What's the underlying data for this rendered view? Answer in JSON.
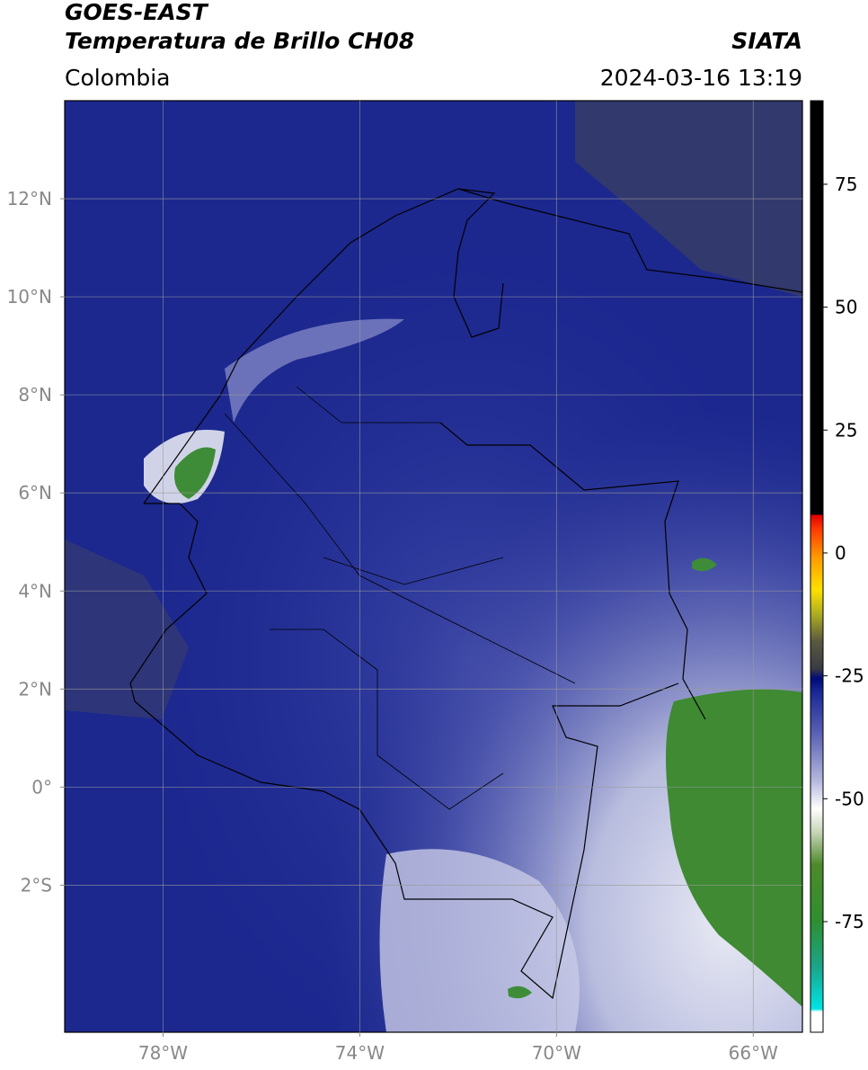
{
  "header": {
    "title_line1": "GOES-EAST",
    "title_line2": "Temperatura de Brillo CH08",
    "source": "SIATA",
    "region": "Colombia",
    "datetime": "2024-03-16 13:19"
  },
  "map": {
    "xlim": [
      -80,
      -65
    ],
    "ylim": [
      -5,
      14
    ],
    "xticks": [
      {
        "value": -78,
        "label": "78°W"
      },
      {
        "value": -74,
        "label": "74°W"
      },
      {
        "value": -70,
        "label": "70°W"
      },
      {
        "value": -66,
        "label": "66°W"
      }
    ],
    "yticks": [
      {
        "value": 12,
        "label": "12°N"
      },
      {
        "value": 10,
        "label": "10°N"
      },
      {
        "value": 8,
        "label": "8°N"
      },
      {
        "value": 6,
        "label": "6°N"
      },
      {
        "value": 4,
        "label": "4°N"
      },
      {
        "value": 2,
        "label": "2°N"
      },
      {
        "value": 0,
        "label": "0°"
      },
      {
        "value": -2,
        "label": "2°S"
      }
    ],
    "grid": true
  },
  "colorbar": {
    "lim": [
      -97.5,
      92
    ],
    "ticks": [
      75,
      50,
      25,
      0,
      -25,
      -50,
      -75
    ]
  }
}
